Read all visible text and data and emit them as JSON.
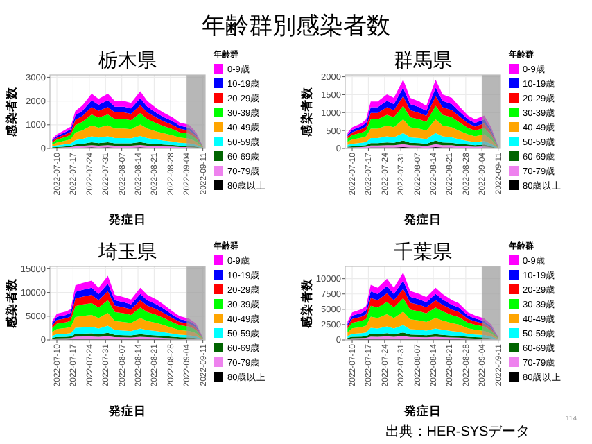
{
  "chart_data": [
    {
      "type": "other",
      "title": "年齢群別感染者数",
      "annotations": [
        "出典：HER-SYSデータ",
        "114"
      ]
    },
    {
      "type": "area",
      "stacked": true,
      "title": "栃木県",
      "xlabel": "発症日",
      "ylabel": "感染者数",
      "legend_title": "年齢群",
      "legend": "right",
      "grid": true,
      "x": [
        "2022-07-08",
        "2022-07-10",
        "2022-07-14",
        "2022-07-16",
        "2022-07-18",
        "2022-07-21",
        "2022-07-25",
        "2022-07-28",
        "2022-08-01",
        "2022-08-04",
        "2022-08-08",
        "2022-08-11",
        "2022-08-15",
        "2022-08-18",
        "2022-08-22",
        "2022-08-25",
        "2022-08-29",
        "2022-09-01",
        "2022-09-05",
        "2022-09-08",
        "2022-09-11"
      ],
      "xlim": [
        "2022-07-07",
        "2022-09-12"
      ],
      "xticks": [
        "2022-07-10",
        "2022-07-17",
        "2022-07-24",
        "2022-07-31",
        "2022-08-07",
        "2022-08-14",
        "2022-08-21",
        "2022-08-28",
        "2022-09-04",
        "2022-09-11"
      ],
      "ylim": [
        0,
        3100
      ],
      "yticks": [
        0,
        1000,
        2000,
        3000
      ],
      "bands": [
        {
          "axis": "x",
          "from": "2022-09-04",
          "to": "2022-09-12",
          "color": "#999999"
        }
      ],
      "series": [
        {
          "name": "80歳以上",
          "color": "#000000",
          "values": [
            10,
            10,
            20,
            20,
            30,
            40,
            50,
            40,
            50,
            40,
            40,
            40,
            50,
            40,
            30,
            30,
            30,
            20,
            20,
            10,
            0
          ]
        },
        {
          "name": "70-79歳",
          "color": "#ee82ee",
          "values": [
            20,
            20,
            30,
            40,
            60,
            70,
            90,
            80,
            90,
            80,
            80,
            80,
            100,
            80,
            70,
            60,
            50,
            40,
            40,
            30,
            0
          ]
        },
        {
          "name": "60-69歳",
          "color": "#006400",
          "values": [
            20,
            30,
            40,
            50,
            80,
            90,
            120,
            110,
            120,
            100,
            100,
            100,
            120,
            100,
            90,
            80,
            70,
            60,
            50,
            40,
            10
          ]
        },
        {
          "name": "50-59歳",
          "color": "#00ffff",
          "values": [
            40,
            70,
            90,
            100,
            180,
            200,
            250,
            230,
            250,
            220,
            220,
            210,
            260,
            220,
            190,
            170,
            140,
            120,
            110,
            80,
            10
          ]
        },
        {
          "name": "40-49歳",
          "color": "#ffa500",
          "values": [
            80,
            120,
            160,
            180,
            320,
            360,
            460,
            420,
            460,
            400,
            400,
            380,
            480,
            400,
            340,
            300,
            260,
            220,
            200,
            140,
            20
          ]
        },
        {
          "name": "30-39歳",
          "color": "#00ff00",
          "values": [
            80,
            120,
            160,
            180,
            320,
            360,
            460,
            420,
            460,
            400,
            400,
            380,
            480,
            400,
            340,
            300,
            260,
            220,
            200,
            140,
            20
          ]
        },
        {
          "name": "20-29歳",
          "color": "#ff0000",
          "values": [
            60,
            80,
            110,
            130,
            220,
            250,
            320,
            290,
            320,
            280,
            280,
            270,
            340,
            280,
            240,
            210,
            180,
            150,
            140,
            100,
            10
          ]
        },
        {
          "name": "10-19歳",
          "color": "#0000ff",
          "values": [
            50,
            70,
            100,
            110,
            190,
            220,
            280,
            250,
            280,
            240,
            240,
            230,
            290,
            240,
            200,
            180,
            160,
            130,
            120,
            80,
            10
          ]
        },
        {
          "name": "0-9歳",
          "color": "#ff00ff",
          "values": [
            50,
            70,
            100,
            110,
            190,
            220,
            280,
            250,
            280,
            240,
            240,
            230,
            290,
            240,
            200,
            180,
            160,
            130,
            120,
            80,
            10
          ]
        }
      ]
    },
    {
      "type": "area",
      "stacked": true,
      "title": "群馬県",
      "xlabel": "発症日",
      "ylabel": "感染者数",
      "legend_title": "年齢群",
      "legend": "right",
      "grid": true,
      "x": [
        "2022-07-08",
        "2022-07-10",
        "2022-07-14",
        "2022-07-16",
        "2022-07-18",
        "2022-07-21",
        "2022-07-25",
        "2022-07-28",
        "2022-08-01",
        "2022-08-04",
        "2022-08-08",
        "2022-08-11",
        "2022-08-15",
        "2022-08-18",
        "2022-08-22",
        "2022-08-25",
        "2022-08-29",
        "2022-09-01",
        "2022-09-05",
        "2022-09-08",
        "2022-09-11"
      ],
      "xlim": [
        "2022-07-07",
        "2022-09-12"
      ],
      "xticks": [
        "2022-07-10",
        "2022-07-17",
        "2022-07-24",
        "2022-07-31",
        "2022-08-07",
        "2022-08-14",
        "2022-08-21",
        "2022-08-28",
        "2022-09-04",
        "2022-09-11"
      ],
      "ylim": [
        0,
        2050
      ],
      "yticks": [
        0,
        500,
        1000,
        1500,
        2000
      ],
      "bands": [
        {
          "axis": "x",
          "from": "2022-09-04",
          "to": "2022-09-12",
          "color": "#999999"
        }
      ],
      "series": [
        {
          "name": "80歳以上",
          "color": "#000000",
          "values": [
            10,
            10,
            10,
            20,
            30,
            30,
            30,
            30,
            40,
            30,
            30,
            20,
            40,
            30,
            30,
            20,
            20,
            20,
            20,
            10,
            0
          ]
        },
        {
          "name": "70-79歳",
          "color": "#ee82ee",
          "values": [
            20,
            20,
            30,
            30,
            50,
            50,
            60,
            60,
            80,
            60,
            50,
            50,
            80,
            60,
            60,
            50,
            40,
            30,
            40,
            20,
            0
          ]
        },
        {
          "name": "60-69歳",
          "color": "#006400",
          "values": [
            20,
            30,
            40,
            40,
            70,
            70,
            80,
            70,
            100,
            70,
            70,
            60,
            100,
            80,
            70,
            60,
            50,
            40,
            50,
            30,
            0
          ]
        },
        {
          "name": "50-59歳",
          "color": "#00ffff",
          "values": [
            50,
            70,
            80,
            90,
            140,
            140,
            170,
            150,
            210,
            150,
            140,
            130,
            210,
            170,
            150,
            130,
            100,
            90,
            100,
            70,
            10
          ]
        },
        {
          "name": "40-49歳",
          "color": "#ffa500",
          "values": [
            90,
            120,
            140,
            160,
            260,
            260,
            300,
            280,
            380,
            280,
            260,
            240,
            380,
            300,
            280,
            240,
            180,
            160,
            180,
            120,
            10
          ]
        },
        {
          "name": "30-39歳",
          "color": "#00ff00",
          "values": [
            90,
            120,
            140,
            160,
            260,
            260,
            300,
            280,
            380,
            280,
            260,
            240,
            380,
            300,
            280,
            240,
            180,
            160,
            180,
            120,
            10
          ]
        },
        {
          "name": "20-29歳",
          "color": "#ff0000",
          "values": [
            60,
            80,
            100,
            110,
            180,
            180,
            210,
            200,
            270,
            200,
            180,
            170,
            270,
            210,
            200,
            170,
            130,
            110,
            130,
            80,
            10
          ]
        },
        {
          "name": "10-19歳",
          "color": "#0000ff",
          "values": [
            50,
            70,
            80,
            100,
            160,
            160,
            180,
            170,
            230,
            170,
            160,
            140,
            230,
            180,
            170,
            140,
            110,
            100,
            110,
            70,
            10
          ]
        },
        {
          "name": "0-9歳",
          "color": "#ff00ff",
          "values": [
            50,
            70,
            80,
            100,
            160,
            160,
            180,
            170,
            230,
            170,
            160,
            140,
            230,
            180,
            170,
            140,
            110,
            100,
            110,
            70,
            10
          ]
        }
      ]
    },
    {
      "type": "area",
      "stacked": true,
      "title": "埼玉県",
      "xlabel": "発症日",
      "ylabel": "感染者数",
      "legend_title": "年齢群",
      "legend": "right",
      "grid": true,
      "x": [
        "2022-07-08",
        "2022-07-10",
        "2022-07-14",
        "2022-07-16",
        "2022-07-18",
        "2022-07-21",
        "2022-07-25",
        "2022-07-28",
        "2022-08-01",
        "2022-08-04",
        "2022-08-08",
        "2022-08-11",
        "2022-08-15",
        "2022-08-18",
        "2022-08-22",
        "2022-08-25",
        "2022-08-29",
        "2022-09-01",
        "2022-09-05",
        "2022-09-08",
        "2022-09-11"
      ],
      "xlim": [
        "2022-07-07",
        "2022-09-12"
      ],
      "xticks": [
        "2022-07-10",
        "2022-07-17",
        "2022-07-24",
        "2022-07-31",
        "2022-08-07",
        "2022-08-14",
        "2022-08-21",
        "2022-08-28",
        "2022-09-04",
        "2022-09-11"
      ],
      "ylim": [
        0,
        15500
      ],
      "yticks": [
        0,
        5000,
        10000,
        15000
      ],
      "bands": [
        {
          "axis": "x",
          "from": "2022-09-04",
          "to": "2022-09-12",
          "color": "#999999"
        }
      ],
      "series": [
        {
          "name": "80歳以上",
          "color": "#000000",
          "values": [
            80,
            110,
            120,
            130,
            230,
            240,
            250,
            220,
            270,
            190,
            180,
            170,
            220,
            190,
            170,
            150,
            120,
            100,
            90,
            70,
            10
          ]
        },
        {
          "name": "70-79歳",
          "color": "#ee82ee",
          "values": [
            160,
            220,
            240,
            260,
            460,
            480,
            500,
            440,
            540,
            380,
            360,
            340,
            440,
            380,
            340,
            300,
            240,
            200,
            180,
            140,
            20
          ]
        },
        {
          "name": "60-69歳",
          "color": "#006400",
          "values": [
            200,
            280,
            300,
            330,
            580,
            600,
            630,
            550,
            680,
            480,
            450,
            430,
            550,
            480,
            430,
            380,
            300,
            250,
            230,
            180,
            30
          ]
        },
        {
          "name": "50-59歳",
          "color": "#00ffff",
          "values": [
            440,
            610,
            660,
            720,
            1270,
            1320,
            1380,
            1210,
            1490,
            1050,
            990,
            940,
            1210,
            1050,
            940,
            830,
            660,
            550,
            500,
            390,
            60
          ]
        },
        {
          "name": "40-49歳",
          "color": "#ffa500",
          "values": [
            800,
            1100,
            1200,
            1300,
            2300,
            2400,
            2500,
            2200,
            2700,
            1900,
            1800,
            1700,
            2200,
            1900,
            1700,
            1500,
            1200,
            1000,
            900,
            700,
            100
          ]
        },
        {
          "name": "30-39歳",
          "color": "#00ff00",
          "values": [
            800,
            1100,
            1200,
            1300,
            2300,
            2400,
            2500,
            2200,
            2700,
            1900,
            1800,
            1700,
            2200,
            1900,
            1700,
            1500,
            1200,
            1000,
            900,
            700,
            100
          ]
        },
        {
          "name": "20-29歳",
          "color": "#ff0000",
          "values": [
            560,
            770,
            840,
            910,
            1610,
            1680,
            1750,
            1540,
            1890,
            1330,
            1260,
            1190,
            1540,
            1330,
            1190,
            1050,
            840,
            700,
            630,
            490,
            70
          ]
        },
        {
          "name": "10-19歳",
          "color": "#0000ff",
          "values": [
            480,
            660,
            720,
            780,
            1380,
            1440,
            1500,
            1320,
            1620,
            1140,
            1080,
            1020,
            1320,
            1140,
            1020,
            900,
            720,
            600,
            540,
            420,
            60
          ]
        },
        {
          "name": "0-9歳",
          "color": "#ff00ff",
          "values": [
            480,
            660,
            720,
            780,
            1380,
            1440,
            1500,
            1320,
            1620,
            1140,
            1080,
            1020,
            1320,
            1140,
            1020,
            900,
            720,
            600,
            540,
            420,
            60
          ]
        }
      ]
    },
    {
      "type": "area",
      "stacked": true,
      "title": "千葉県",
      "xlabel": "発症日",
      "ylabel": "感染者数",
      "legend_title": "年齢群",
      "legend": "right",
      "grid": true,
      "x": [
        "2022-07-08",
        "2022-07-10",
        "2022-07-14",
        "2022-07-16",
        "2022-07-18",
        "2022-07-21",
        "2022-07-25",
        "2022-07-28",
        "2022-08-01",
        "2022-08-04",
        "2022-08-08",
        "2022-08-11",
        "2022-08-15",
        "2022-08-18",
        "2022-08-22",
        "2022-08-25",
        "2022-08-29",
        "2022-09-01",
        "2022-09-05",
        "2022-09-08",
        "2022-09-11"
      ],
      "xlim": [
        "2022-07-07",
        "2022-09-12"
      ],
      "xticks": [
        "2022-07-10",
        "2022-07-17",
        "2022-07-24",
        "2022-07-31",
        "2022-08-07",
        "2022-08-14",
        "2022-08-21",
        "2022-08-28",
        "2022-09-04",
        "2022-09-11"
      ],
      "ylim": [
        0,
        12000
      ],
      "yticks": [
        0,
        2500,
        5000,
        7500,
        10000
      ],
      "bands": [
        {
          "axis": "x",
          "from": "2022-09-04",
          "to": "2022-09-12",
          "color": "#999999"
        }
      ],
      "series": [
        {
          "name": "80歳以上",
          "color": "#000000",
          "values": [
            60,
            90,
            100,
            110,
            180,
            170,
            200,
            170,
            220,
            160,
            150,
            140,
            170,
            150,
            130,
            120,
            90,
            80,
            70,
            50,
            10
          ]
        },
        {
          "name": "70-79歳",
          "color": "#ee82ee",
          "values": [
            120,
            180,
            200,
            220,
            360,
            340,
            400,
            340,
            440,
            320,
            300,
            280,
            340,
            300,
            260,
            240,
            180,
            160,
            140,
            100,
            20
          ]
        },
        {
          "name": "60-69歳",
          "color": "#006400",
          "values": [
            150,
            230,
            250,
            280,
            450,
            430,
            500,
            430,
            550,
            400,
            380,
            350,
            430,
            380,
            330,
            300,
            230,
            200,
            180,
            130,
            30
          ]
        },
        {
          "name": "50-59歳",
          "color": "#00ffff",
          "values": [
            330,
            500,
            550,
            610,
            990,
            940,
            1100,
            940,
            1210,
            880,
            830,
            770,
            940,
            830,
            720,
            660,
            500,
            440,
            390,
            280,
            60
          ]
        },
        {
          "name": "40-49歳",
          "color": "#ffa500",
          "values": [
            600,
            900,
            1000,
            1100,
            1800,
            1700,
            2000,
            1700,
            2200,
            1600,
            1500,
            1400,
            1700,
            1500,
            1300,
            1200,
            900,
            800,
            700,
            500,
            100
          ]
        },
        {
          "name": "30-39歳",
          "color": "#00ff00",
          "values": [
            600,
            900,
            1000,
            1100,
            1800,
            1700,
            2000,
            1700,
            2200,
            1600,
            1500,
            1400,
            1700,
            1500,
            1300,
            1200,
            900,
            800,
            700,
            500,
            100
          ]
        },
        {
          "name": "20-29歳",
          "color": "#ff0000",
          "values": [
            420,
            630,
            700,
            770,
            1260,
            1190,
            1400,
            1190,
            1540,
            1120,
            1050,
            980,
            1190,
            1050,
            910,
            840,
            630,
            560,
            490,
            350,
            70
          ]
        },
        {
          "name": "10-19歳",
          "color": "#0000ff",
          "values": [
            360,
            540,
            600,
            660,
            1080,
            1020,
            1200,
            1020,
            1320,
            960,
            900,
            840,
            1020,
            900,
            780,
            720,
            540,
            480,
            420,
            300,
            60
          ]
        },
        {
          "name": "0-9歳",
          "color": "#ff00ff",
          "values": [
            360,
            540,
            600,
            660,
            1080,
            1020,
            1200,
            1020,
            1320,
            960,
            900,
            840,
            1020,
            900,
            780,
            720,
            540,
            480,
            420,
            300,
            60
          ]
        }
      ]
    }
  ]
}
